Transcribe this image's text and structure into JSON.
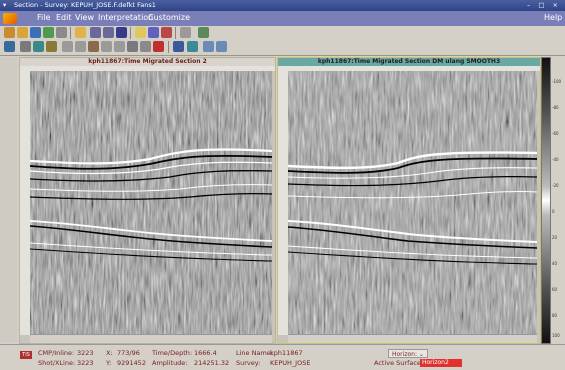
{
  "window": {
    "title": "Section - Survey: KEPUH_JOSE.F.defkt Fans1",
    "controls": "– □ ×"
  },
  "menu": {
    "items": [
      "File",
      "Edit",
      "View",
      "Interpretation",
      "Customize"
    ],
    "help": "Help"
  },
  "panels": [
    {
      "title": "kph11867:Time Migrated Section 2"
    },
    {
      "title": "kph11867:Time Migrated Section DM ulang SMOOTH3"
    }
  ],
  "colorbar": {
    "ticks": [
      "-100",
      "-80",
      "-60",
      "-40",
      "-20",
      "0",
      "20",
      "40",
      "60",
      "80",
      "100"
    ]
  },
  "status": {
    "mode_badge": "TIS",
    "cmp_label": "CMP/Inline:",
    "cmp_value": "3223",
    "shot_label": "Shot/XLine:",
    "shot_value": "3223",
    "x_label": "X:",
    "x_value": "773/96",
    "y_label": "Y:",
    "y_value": "9291452",
    "td_label": "Time/Depth:",
    "td_value": "1666.4",
    "amp_label": "Amplitude:",
    "amp_value": "214251.32",
    "line_label": "Line Name:",
    "line_value": "kph11867",
    "survey_label": "Survey:",
    "survey_value": "KEPUH_JOSE",
    "horizon_button": "Horizon:",
    "active_surface_label": "Active Surface:",
    "active_surface_value": "Horizon2"
  }
}
